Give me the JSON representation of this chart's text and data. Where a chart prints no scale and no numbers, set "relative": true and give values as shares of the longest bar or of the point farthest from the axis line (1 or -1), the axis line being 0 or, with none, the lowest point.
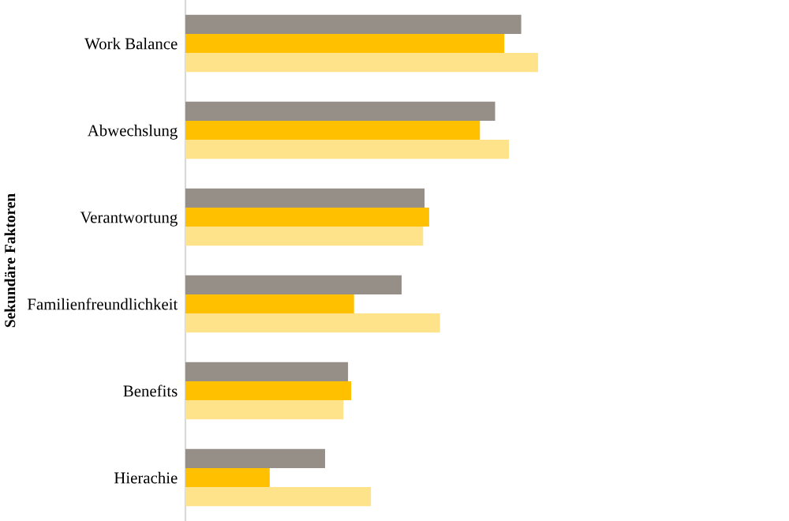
{
  "chart_data": {
    "type": "bar",
    "orientation": "horizontal",
    "relative": true,
    "ylabel": "Sekundäre Faktoren",
    "tick_labels": "y",
    "categories": [
      "Work Balance",
      "Abwechslung",
      "Verantwortung",
      "Familienfreundlichkeit",
      "Benefits",
      "Hierachie"
    ],
    "series": [
      {
        "color": "#958f88",
        "values": [
          0.952,
          0.878,
          0.678,
          0.613,
          0.461,
          0.396
        ]
      },
      {
        "color": "#ffc000",
        "values": [
          0.904,
          0.835,
          0.691,
          0.478,
          0.47,
          0.239
        ]
      },
      {
        "color": "#ffe38a",
        "values": [
          1,
          0.917,
          0.674,
          0.722,
          0.448,
          0.526
        ]
      }
    ]
  }
}
